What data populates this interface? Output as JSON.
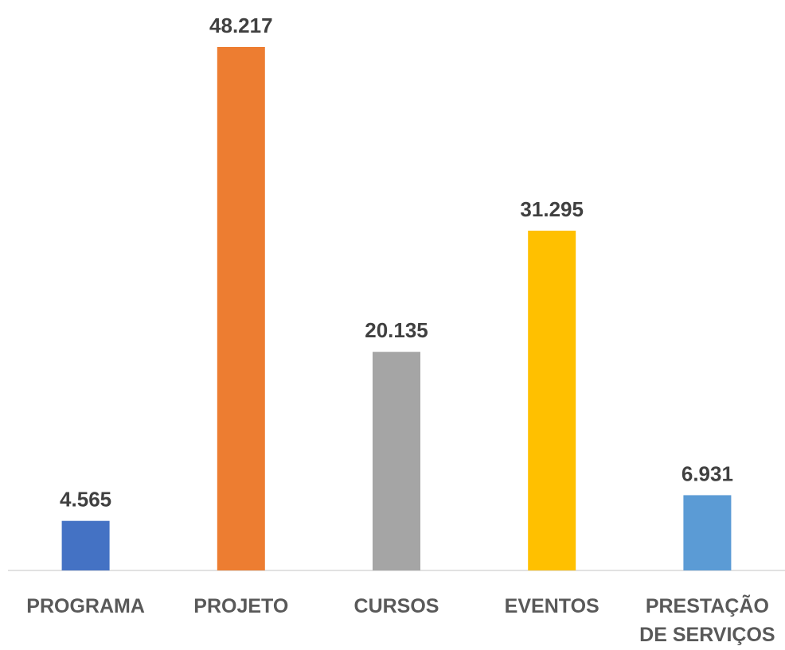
{
  "chart_data": {
    "type": "bar",
    "categories": [
      "PROGRAMA",
      "PROJETO",
      "CURSOS",
      "EVENTOS",
      "PRESTAÇÃO DE SERVIÇOS"
    ],
    "values": [
      4565,
      48217,
      20135,
      31295,
      6931
    ],
    "value_labels": [
      "4.565",
      "48.217",
      "20.135",
      "31.295",
      "6.931"
    ],
    "colors": [
      "#4472c4",
      "#ed7d31",
      "#a5a5a5",
      "#ffc000",
      "#5b9bd5"
    ]
  }
}
